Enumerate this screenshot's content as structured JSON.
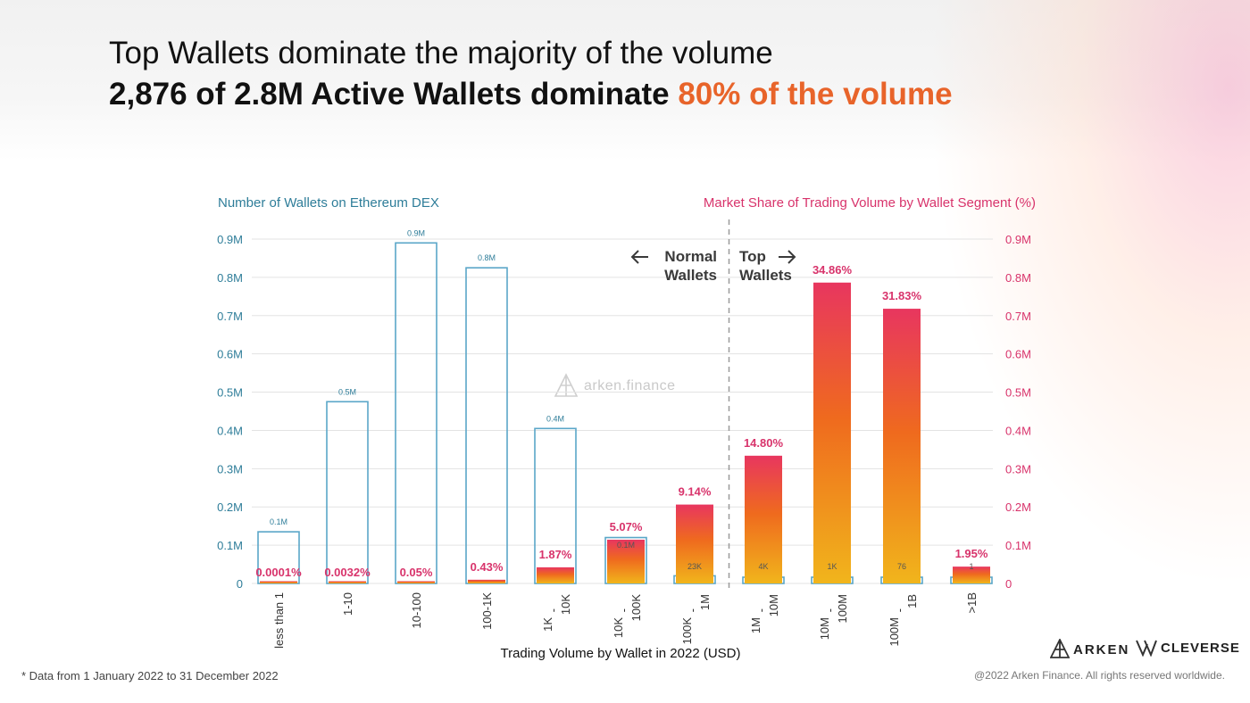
{
  "header": {
    "title_line1": "Top Wallets dominate the majority of the volume",
    "title_line2_main": "2,876 of 2.8M Active Wallets dominate ",
    "title_line2_accent": "80% of the volume"
  },
  "footer": {
    "footnote": "* Data from 1 January 2022 to 31 December 2022",
    "copyright": "@2022 Arken Finance. All rights reserved worldwide.",
    "logo_arken": "ARKEN",
    "logo_cleverse": "CLEVERSE",
    "watermark": "arken.finance"
  },
  "colors": {
    "left_axis": "#2e7d99",
    "right_axis": "#d8336b",
    "wallet_outline": "#5aa6c8",
    "volume_top": "#e8365f",
    "volume_mid": "#ef6a1e",
    "volume_bottom": "#f1b51c",
    "accent": "#e8642a"
  },
  "chart_data": {
    "type": "bar",
    "xlabel": "Trading Volume by Wallet in 2022 (USD)",
    "left_axis_title": "Number of Wallets on Ethereum DEX",
    "right_axis_title": "Market Share of Trading Volume by Wallet Segment (%)",
    "left_ticks": [
      "0",
      "0.1M",
      "0.2M",
      "0.3M",
      "0.4M",
      "0.5M",
      "0.6M",
      "0.7M",
      "0.8M",
      "0.9M"
    ],
    "right_ticks": [
      "0",
      "0.1M",
      "0.2M",
      "0.3M",
      "0.4M",
      "0.5M",
      "0.6M",
      "0.7M",
      "0.8M",
      "0.9M"
    ],
    "ylim": [
      0,
      0.9
    ],
    "categories": [
      {
        "line1": "less than 1",
        "line2": ""
      },
      {
        "line1": "1-10",
        "line2": ""
      },
      {
        "line1": "10-100",
        "line2": ""
      },
      {
        "line1": "100-1K",
        "line2": ""
      },
      {
        "line1": "1K",
        "line2": "10K"
      },
      {
        "line1": "10K",
        "line2": "100K"
      },
      {
        "line1": "100K",
        "line2": "1M"
      },
      {
        "line1": "1M",
        "line2": "10M"
      },
      {
        "line1": "10M",
        "line2": "100M"
      },
      {
        "line1": "100M",
        "line2": "1B"
      },
      {
        "line1": ">1B",
        "line2": ""
      }
    ],
    "series": [
      {
        "values": [
          0.135,
          0.475,
          0.89,
          0.825,
          0.405,
          0.12,
          0.02,
          0.0,
          0.0,
          0.0,
          0.0
        ],
        "labels": [
          "0.1M",
          "0.5M",
          "0.9M",
          "0.8M",
          "0.4M",
          "0.1M",
          "23K",
          "4K",
          "1K",
          "76",
          "1"
        ]
      },
      {
        "values": [
          0.0001,
          0.0032,
          0.05,
          0.43,
          1.87,
          5.07,
          9.14,
          14.8,
          34.86,
          31.83,
          1.95
        ],
        "labels": [
          "0.0001%",
          "0.0032%",
          "0.05%",
          "0.43%",
          "1.87%",
          "5.07%",
          "9.14%",
          "14.80%",
          "34.86%",
          "31.83%",
          "1.95%"
        ]
      }
    ],
    "percent_scale_max": 39.9,
    "annotations": {
      "normal_line1": "Normal",
      "normal_line2": "Wallets",
      "top_line1": "Top",
      "top_line2": "Wallets"
    },
    "divider_after_category": 6,
    "grid": true
  }
}
